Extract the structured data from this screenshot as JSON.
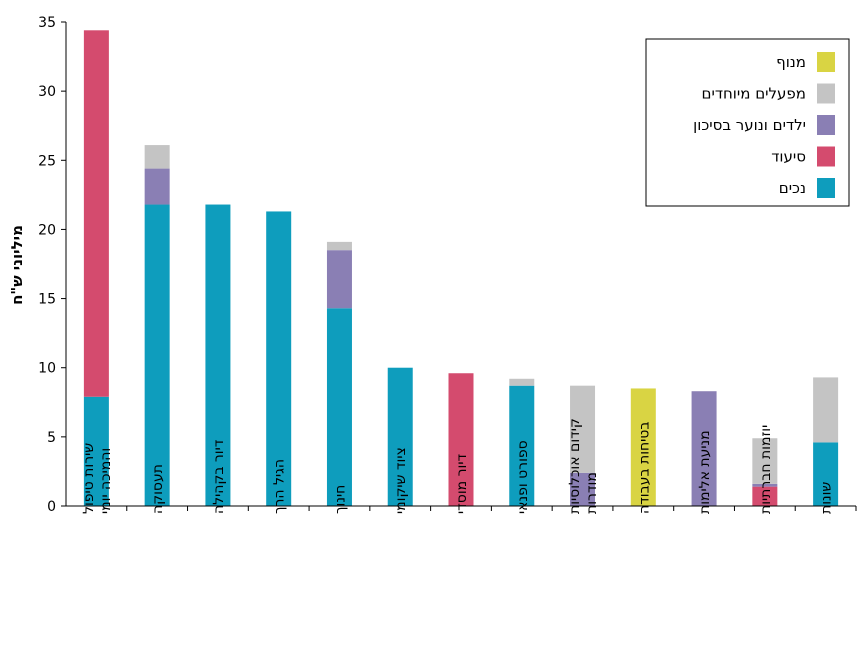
{
  "chart_data": {
    "type": "bar",
    "stacked": true,
    "ylabel": "מיליוני ש\"ח",
    "ylim": [
      0,
      35
    ],
    "yticks": [
      0,
      5,
      10,
      15,
      20,
      25,
      30,
      35
    ],
    "legend_position": "top-right",
    "categories": [
      [
        "שירות טיפול",
        "והמיכה יומי"
      ],
      [
        "תעסוקה"
      ],
      [
        "דיור בקהילה"
      ],
      [
        "הגיל הרך"
      ],
      [
        "חינוך"
      ],
      [
        "ציוד שיקומי"
      ],
      [
        "דיור מוסדי"
      ],
      [
        "ספורט ופנאי"
      ],
      [
        "קידום אוכלוסיות",
        "מודרות"
      ],
      [
        "בטיחות בעבודה"
      ],
      [
        "מניעת אלימות"
      ],
      [
        "יוזמות חברתיות"
      ],
      [
        "שונות"
      ]
    ],
    "series": [
      {
        "name": "נכים",
        "color": "#0e9dbd",
        "values": [
          7.9,
          21.8,
          21.8,
          21.3,
          14.3,
          10.0,
          0,
          8.7,
          0,
          0,
          0,
          0,
          4.6
        ]
      },
      {
        "name": "סיעוד",
        "color": "#d44b6e",
        "values": [
          26.5,
          0,
          0,
          0,
          0,
          0,
          9.6,
          0,
          0,
          0,
          0,
          1.4,
          0
        ]
      },
      {
        "name": "ילדים ונוער בסיכון",
        "color": "#8a7fb4",
        "values": [
          0,
          2.6,
          0,
          0,
          4.2,
          0,
          0,
          0,
          2.4,
          0,
          8.3,
          0.2,
          0
        ]
      },
      {
        "name": "מפעלים מיוחדים",
        "color": "#c4c4c4",
        "values": [
          0,
          1.7,
          0,
          0,
          0.6,
          0,
          0,
          0.5,
          6.3,
          0,
          0,
          3.3,
          4.7
        ]
      },
      {
        "name": "מנוף",
        "color": "#d9d443",
        "values": [
          0,
          0,
          0,
          0,
          0,
          0,
          0,
          0,
          0,
          8.5,
          0,
          0,
          0
        ]
      }
    ],
    "legend_order": [
      "מנוף",
      "מפעלים מיוחדים",
      "ילדים ונוער בסיכון",
      "סיעוד",
      "נכים"
    ]
  }
}
